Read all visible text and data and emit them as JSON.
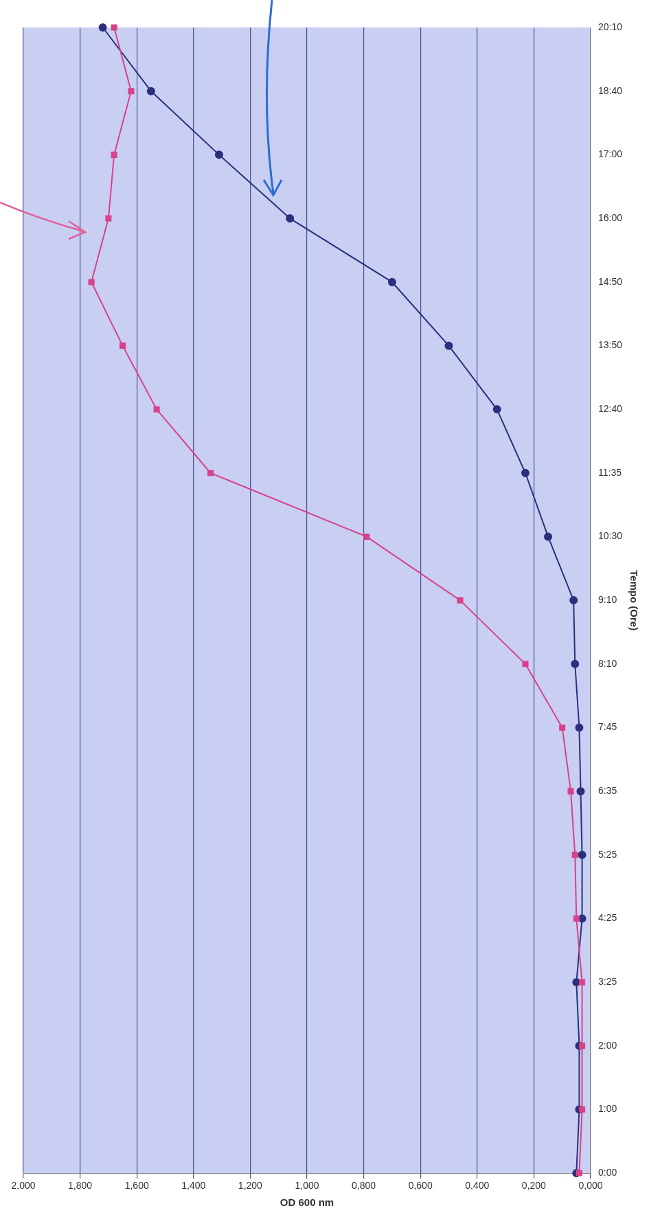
{
  "chart_data": {
    "type": "line",
    "orientation": "horizontal",
    "xlabel": "OD 600 nm",
    "ylabel": "Tempo (Ore)",
    "categories": [
      "20:10",
      "18:40",
      "17:00",
      "16:00",
      "14:50",
      "13:50",
      "12:40",
      "11:35",
      "10:30",
      "9:10",
      "8:10",
      "7:45",
      "6:35",
      "5:25",
      "4:25",
      "3:25",
      "2:00",
      "1:00",
      "0:00"
    ],
    "series": [
      {
        "color": "#2b2f7c",
        "marker": "circle",
        "values": [
          1.72,
          1.55,
          1.31,
          1.06,
          0.7,
          0.5,
          0.33,
          0.23,
          0.15,
          0.06,
          0.055,
          0.04,
          0.035,
          0.03,
          0.03,
          0.05,
          0.04,
          0.04,
          0.05
        ]
      },
      {
        "color": "#d8428a",
        "marker": "square",
        "values": [
          1.68,
          1.62,
          1.68,
          1.7,
          1.76,
          1.65,
          1.53,
          1.34,
          0.79,
          0.46,
          0.23,
          0.1,
          0.07,
          0.055,
          0.05,
          0.03,
          0.03,
          0.03,
          0.04
        ]
      }
    ],
    "xlim": [
      2,
      0
    ],
    "xticks": [
      {
        "value": 2,
        "label": "2,000"
      },
      {
        "value": 1.8,
        "label": "1,800"
      },
      {
        "value": 1.6,
        "label": "1,600"
      },
      {
        "value": 1.4,
        "label": "1,400"
      },
      {
        "value": 1.2,
        "label": "1,200"
      },
      {
        "value": 1,
        "label": "1,000"
      },
      {
        "value": 0.8,
        "label": "0,800"
      },
      {
        "value": 0.6,
        "label": "0,600"
      },
      {
        "value": 0.4,
        "label": "0,400"
      },
      {
        "value": 0.2,
        "label": "0,200"
      },
      {
        "value": 0,
        "label": "0,000"
      }
    ],
    "grid": "x",
    "legend": false
  }
}
